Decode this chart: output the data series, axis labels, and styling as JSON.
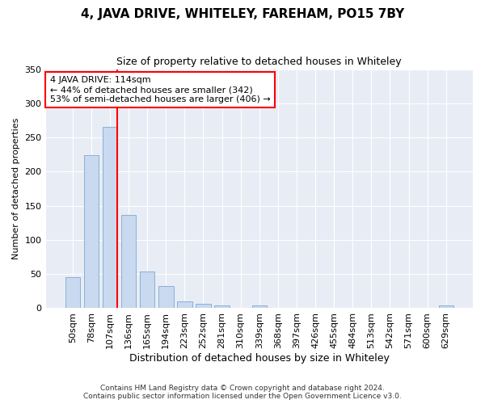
{
  "title": "4, JAVA DRIVE, WHITELEY, FAREHAM, PO15 7BY",
  "subtitle": "Size of property relative to detached houses in Whiteley",
  "xlabel": "Distribution of detached houses by size in Whiteley",
  "ylabel": "Number of detached properties",
  "bar_color": "#c9d9f0",
  "bar_edge_color": "#8bafd4",
  "background_color": "#e8edf5",
  "categories": [
    "50sqm",
    "78sqm",
    "107sqm",
    "136sqm",
    "165sqm",
    "194sqm",
    "223sqm",
    "252sqm",
    "281sqm",
    "310sqm",
    "339sqm",
    "368sqm",
    "397sqm",
    "426sqm",
    "455sqm",
    "484sqm",
    "513sqm",
    "542sqm",
    "571sqm",
    "600sqm",
    "629sqm"
  ],
  "values": [
    46,
    224,
    265,
    136,
    54,
    33,
    10,
    7,
    4,
    0,
    4,
    0,
    0,
    0,
    0,
    0,
    0,
    0,
    0,
    0,
    4
  ],
  "red_line_index": 2,
  "annotation_text": "4 JAVA DRIVE: 114sqm\n← 44% of detached houses are smaller (342)\n53% of semi-detached houses are larger (406) →",
  "annotation_box_color": "white",
  "annotation_box_edge": "red",
  "ylim": [
    0,
    350
  ],
  "yticks": [
    0,
    50,
    100,
    150,
    200,
    250,
    300,
    350
  ],
  "footnote1": "Contains HM Land Registry data © Crown copyright and database right 2024.",
  "footnote2": "Contains public sector information licensed under the Open Government Licence v3.0."
}
